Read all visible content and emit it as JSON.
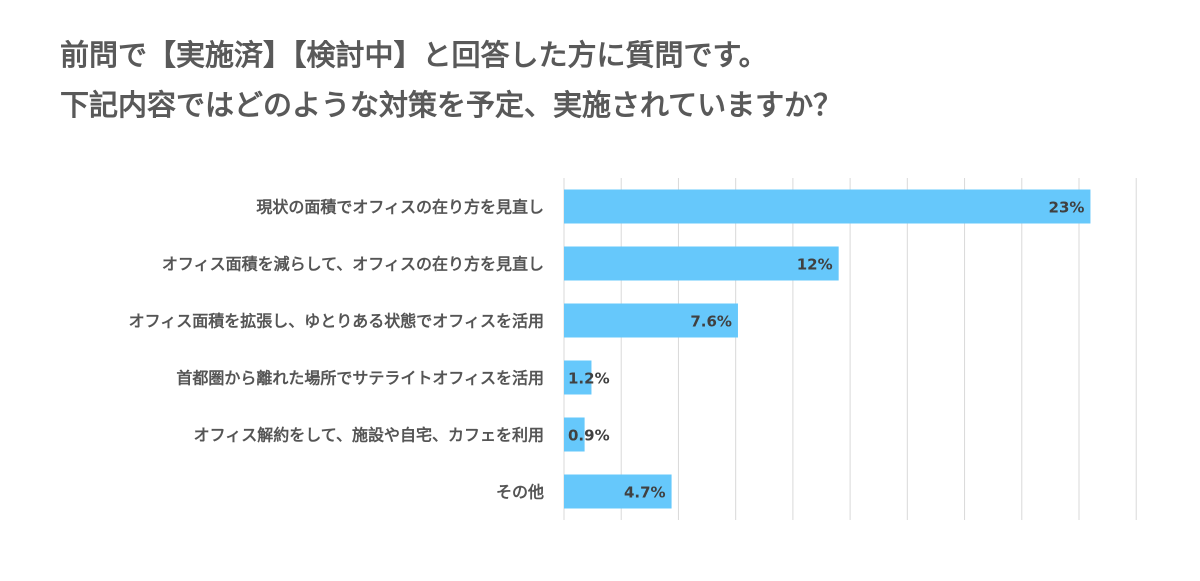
{
  "title": {
    "line1": "前問で【実施済】【検討中】と回答した方に質問です。",
    "line2": "下記内容ではどのような対策を予定、実施されていますか？"
  },
  "colors": {
    "bar": "#66c8fb",
    "grid": "#d9d9d9",
    "text": "#555555",
    "title": "#595959"
  },
  "chart_data": {
    "type": "bar",
    "orientation": "horizontal",
    "categories": [
      "現状の面積でオフィスの在り方を見直し",
      "オフィス面積を減らして、オフィスの在り方を見直し",
      "オフィス面積を拡張し、ゆとりある状態でオフィスを活用",
      "首都圏から離れた場所でサテライトオフィスを活用",
      "オフィス解約をして、施設や自宅、カフェを利用",
      "その他"
    ],
    "values": [
      23,
      12,
      7.6,
      1.2,
      0.9,
      4.7
    ],
    "labels": [
      "23%",
      "12%",
      "7.6%",
      "1.2%",
      "0.9%",
      "4.7%"
    ],
    "xlim": [
      0,
      27
    ],
    "grid": true,
    "legend": "none"
  }
}
